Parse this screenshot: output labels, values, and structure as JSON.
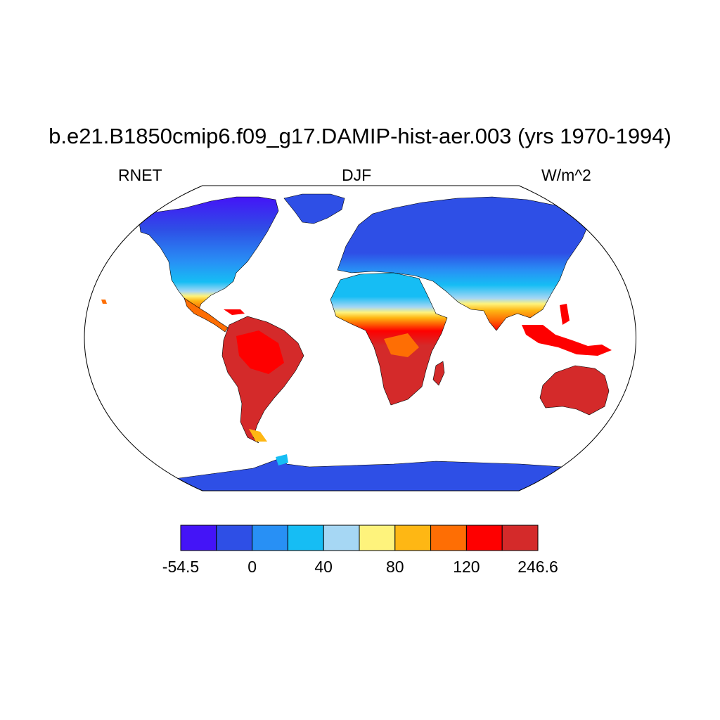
{
  "title": "b.e21.B1850cmip6.f09_g17.DAMIP-hist-aer.003 (yrs 1970-1994)",
  "left_label": "RNET",
  "center_label": "DJF",
  "right_label": "W/m^2",
  "colorbar": {
    "colors": [
      "#4414f7",
      "#2e4fe6",
      "#2890f5",
      "#16bdf4",
      "#a6d7f4",
      "#fef37c",
      "#feb714",
      "#fe6e04",
      "#fe0000",
      "#d42a2a"
    ],
    "tick_labels": [
      "-54.5",
      "0",
      "40",
      "80",
      "120",
      "246.6"
    ]
  }
}
